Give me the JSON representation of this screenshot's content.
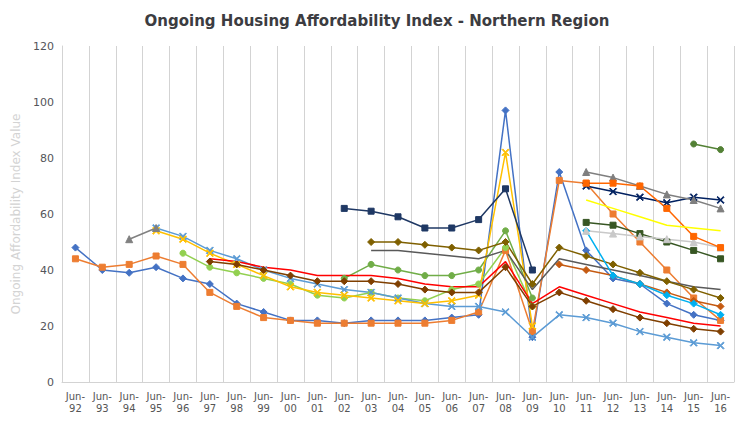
{
  "chart_data": {
    "type": "line",
    "title": "Ongoing Housing Affordability Index - Northern Region",
    "ylabel": "Ongoing Affordability Index Value",
    "ylim": [
      0,
      120
    ],
    "yticks": [
      0,
      20,
      40,
      60,
      80,
      100,
      120
    ],
    "grid": "x",
    "categories": [
      "Jun-\n92",
      "Jun-\n93",
      "Jun-\n94",
      "Jun-\n95",
      "Jun-\n96",
      "Jun-\n97",
      "Jun-\n98",
      "Jun-\n99",
      "Jun-\n00",
      "Jun-\n01",
      "Jun-\n02",
      "Jun-\n03",
      "Jun-\n04",
      "Jun-\n05",
      "Jun-\n06",
      "Jun-\n07",
      "Jun-\n08",
      "Jun-\n09",
      "Jun-\n10",
      "Jun-\n11",
      "Jun-\n12",
      "Jun-\n13",
      "Jun-\n14",
      "Jun-\n15",
      "Jun-\n16"
    ],
    "series": [
      {
        "color": "#4472C4",
        "marker": "diamond",
        "values": [
          48,
          40,
          39,
          41,
          37,
          35,
          28,
          25,
          22,
          22,
          21,
          22,
          22,
          22,
          23,
          24,
          97,
          16,
          75,
          47,
          37,
          35,
          28,
          24,
          22
        ]
      },
      {
        "color": "#ED7D31",
        "marker": "square",
        "values": [
          44,
          41,
          42,
          45,
          42,
          32,
          27,
          23,
          22,
          21,
          21,
          21,
          21,
          21,
          22,
          25,
          47,
          18,
          72,
          71,
          60,
          50,
          40,
          30,
          22
        ]
      },
      {
        "color": "#92D050",
        "marker": "circle",
        "values": [
          null,
          null,
          null,
          null,
          46,
          41,
          39,
          37,
          35,
          31,
          30,
          32,
          30,
          29,
          33,
          35,
          48,
          27,
          null,
          null,
          null,
          null,
          null,
          null,
          null
        ]
      },
      {
        "color": "#70AD47",
        "marker": "circle",
        "values": [
          null,
          null,
          null,
          null,
          null,
          null,
          null,
          null,
          null,
          null,
          37,
          42,
          40,
          38,
          38,
          40,
          54,
          30,
          null,
          null,
          null,
          null,
          null,
          null,
          null
        ]
      },
      {
        "color": "#5B9BD5",
        "marker": "x",
        "values": [
          null,
          null,
          null,
          55,
          52,
          47,
          44,
          40,
          37,
          35,
          33,
          32,
          30,
          28,
          27,
          27,
          25,
          16,
          24,
          23,
          21,
          18,
          16,
          14,
          13
        ]
      },
      {
        "color": "#FFC000",
        "marker": "x",
        "values": [
          null,
          null,
          null,
          54,
          51,
          46,
          42,
          38,
          34,
          32,
          31,
          30,
          29,
          28,
          29,
          31,
          82,
          20,
          null,
          null,
          null,
          null,
          null,
          null,
          null
        ]
      },
      {
        "color": "#1F3864",
        "marker": "square",
        "values": [
          null,
          null,
          null,
          null,
          null,
          null,
          null,
          null,
          null,
          null,
          62,
          61,
          59,
          55,
          55,
          58,
          69,
          40,
          null,
          null,
          null,
          null,
          null,
          null,
          null
        ]
      },
      {
        "color": "#FF0000",
        "marker": "none",
        "values": [
          null,
          null,
          null,
          null,
          null,
          44,
          43,
          41,
          40,
          38,
          38,
          38,
          37,
          35,
          34,
          34,
          43,
          28,
          34,
          31,
          28,
          25,
          23,
          21,
          20
        ]
      },
      {
        "color": "#7F3F00",
        "marker": "diamond",
        "values": [
          null,
          null,
          null,
          null,
          null,
          43,
          42,
          40,
          38,
          36,
          36,
          36,
          35,
          33,
          32,
          32,
          41,
          27,
          32,
          29,
          26,
          23,
          21,
          19,
          18
        ]
      },
      {
        "color": "#808080",
        "marker": "triangle",
        "values": [
          null,
          null,
          51,
          55,
          null,
          null,
          null,
          null,
          null,
          null,
          null,
          null,
          null,
          null,
          null,
          null,
          null,
          null,
          null,
          null,
          null,
          null,
          null,
          null,
          null
        ]
      },
      {
        "color": "#595959",
        "marker": "none",
        "values": [
          null,
          null,
          null,
          null,
          null,
          null,
          null,
          null,
          null,
          null,
          null,
          47,
          47,
          46,
          45,
          44,
          47,
          33,
          44,
          42,
          40,
          38,
          36,
          34,
          33
        ]
      },
      {
        "color": "#7F6000",
        "marker": "diamond",
        "values": [
          null,
          null,
          null,
          null,
          null,
          null,
          null,
          null,
          null,
          null,
          null,
          50,
          50,
          49,
          48,
          47,
          50,
          35,
          48,
          45,
          42,
          39,
          36,
          33,
          30
        ]
      },
      {
        "color": "#C55A11",
        "marker": "diamond",
        "values": [
          null,
          null,
          null,
          null,
          null,
          null,
          null,
          null,
          null,
          null,
          null,
          null,
          null,
          null,
          null,
          null,
          null,
          null,
          42,
          40,
          38,
          35,
          32,
          29,
          27
        ]
      },
      {
        "color": "#375623",
        "marker": "square",
        "values": [
          null,
          null,
          null,
          null,
          null,
          null,
          null,
          null,
          null,
          null,
          null,
          null,
          null,
          null,
          null,
          null,
          null,
          null,
          null,
          57,
          56,
          53,
          50,
          47,
          44
        ]
      },
      {
        "color": "#00B0F0",
        "marker": "diamond",
        "values": [
          null,
          null,
          null,
          null,
          null,
          null,
          null,
          null,
          null,
          null,
          null,
          null,
          null,
          null,
          null,
          null,
          null,
          null,
          null,
          54,
          38,
          35,
          31,
          28,
          24
        ]
      },
      {
        "color": "#C9C9C9",
        "marker": "triangle",
        "values": [
          null,
          null,
          null,
          null,
          null,
          null,
          null,
          null,
          null,
          null,
          null,
          null,
          null,
          null,
          null,
          null,
          null,
          null,
          null,
          54,
          53,
          52,
          51,
          50,
          48
        ]
      },
      {
        "color": "#002060",
        "marker": "x",
        "values": [
          null,
          null,
          null,
          null,
          null,
          null,
          null,
          null,
          null,
          null,
          null,
          null,
          null,
          null,
          null,
          null,
          null,
          null,
          null,
          70,
          68,
          66,
          64,
          66,
          65
        ]
      },
      {
        "color": "#7F7F7F",
        "marker": "triangle",
        "values": [
          null,
          null,
          null,
          null,
          null,
          null,
          null,
          null,
          null,
          null,
          null,
          null,
          null,
          null,
          null,
          null,
          null,
          null,
          null,
          75,
          73,
          70,
          67,
          65,
          62
        ]
      },
      {
        "color": "#FF6600",
        "marker": "square",
        "values": [
          null,
          null,
          null,
          null,
          null,
          null,
          null,
          null,
          null,
          null,
          null,
          null,
          null,
          null,
          null,
          null,
          null,
          null,
          null,
          71,
          71,
          70,
          62,
          52,
          48
        ]
      },
      {
        "color": "#FFFF00",
        "marker": "none",
        "values": [
          null,
          null,
          null,
          null,
          null,
          null,
          null,
          null,
          null,
          null,
          null,
          null,
          null,
          null,
          null,
          null,
          null,
          null,
          null,
          65,
          62,
          59,
          56,
          55,
          54
        ]
      },
      {
        "color": "#538135",
        "marker": "circle",
        "values": [
          null,
          null,
          null,
          null,
          null,
          null,
          null,
          null,
          null,
          null,
          null,
          null,
          null,
          null,
          null,
          null,
          null,
          null,
          null,
          null,
          null,
          null,
          null,
          85,
          83
        ]
      }
    ]
  }
}
